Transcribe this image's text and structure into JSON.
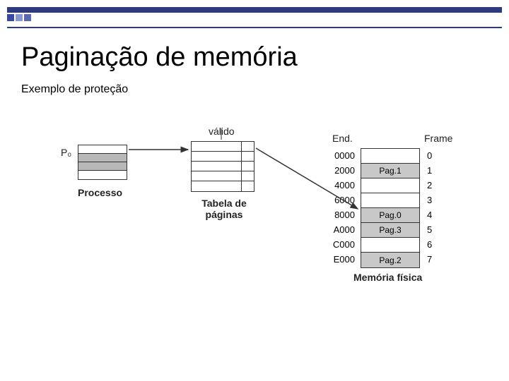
{
  "decor": {
    "bar_color": "#2e3a7c",
    "square_colors": [
      "#3a4a9e",
      "#8a96cc",
      "#5a68b0"
    ]
  },
  "title": "Paginação de memória",
  "subtitle": "Exemplo de proteção",
  "labels": {
    "process_id": "P₀",
    "process": "Processo",
    "valid": "válido",
    "page_table": "Tabela de páginas",
    "end": "End.",
    "frame": "Frame",
    "physical_mem": "Memória física"
  },
  "process": {
    "rows": 4,
    "shaded_rows": [
      1,
      2
    ]
  },
  "page_table": {
    "rows": 5
  },
  "addresses": [
    "0000",
    "2000",
    "4000",
    "6000",
    "8000",
    "A000",
    "C000",
    "E000"
  ],
  "frames": [
    "0",
    "1",
    "2",
    "3",
    "4",
    "5",
    "6",
    "7"
  ],
  "memory": [
    {
      "text": "",
      "shaded": false
    },
    {
      "text": "Pag.1",
      "shaded": true
    },
    {
      "text": "",
      "shaded": false
    },
    {
      "text": "",
      "shaded": false
    },
    {
      "text": "Pag.0",
      "shaded": true
    },
    {
      "text": "Pag.3",
      "shaded": true
    },
    {
      "text": "",
      "shaded": false
    },
    {
      "text": "Pag.2",
      "shaded": true
    }
  ],
  "colors": {
    "stroke": "#333333",
    "shade": "#c8c8c8",
    "process_shade": "#b8b8b8",
    "text": "#222222"
  }
}
